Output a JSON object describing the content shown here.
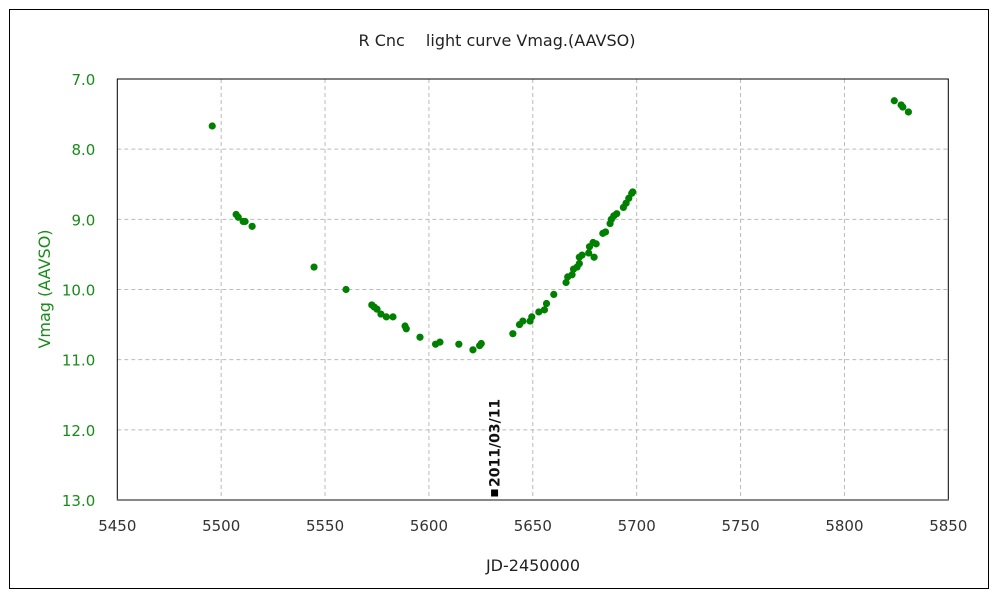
{
  "chart_data": {
    "type": "scatter",
    "title": "R Cnc　 light curve Vmag.(AAVSO)",
    "xlabel": "JD-2450000",
    "ylabel": "Vmag (AAVSO)",
    "xlim": [
      5450,
      5850
    ],
    "ylim": [
      7.0,
      13.0
    ],
    "y_inverted": true,
    "grid": true,
    "x_ticks": [
      "5450",
      "5500",
      "5550",
      "5600",
      "5650",
      "5700",
      "5750",
      "5800",
      "5850"
    ],
    "y_ticks": [
      "7.0",
      "8.0",
      "9.0",
      "10.0",
      "11.0",
      "12.0",
      "13.0"
    ],
    "marker_color": "#008000",
    "y_label_color": "#1a8a1a",
    "annotation": {
      "label": "2011/03/11",
      "x": 5631.6,
      "y": 12.9
    },
    "points": [
      [
        5495.7,
        7.67
      ],
      [
        5507.2,
        8.93
      ],
      [
        5508.2,
        8.97
      ],
      [
        5510.6,
        9.03
      ],
      [
        5511.5,
        9.03
      ],
      [
        5514.9,
        9.1
      ],
      [
        5544.7,
        9.68
      ],
      [
        5560.1,
        10.0
      ],
      [
        5572.5,
        10.22
      ],
      [
        5573.7,
        10.25
      ],
      [
        5575.0,
        10.28
      ],
      [
        5576.9,
        10.35
      ],
      [
        5579.5,
        10.39
      ],
      [
        5582.7,
        10.39
      ],
      [
        5588.5,
        10.52
      ],
      [
        5589.1,
        10.56
      ],
      [
        5595.7,
        10.68
      ],
      [
        5603.2,
        10.78
      ],
      [
        5605.3,
        10.75
      ],
      [
        5614.4,
        10.78
      ],
      [
        5621.2,
        10.86
      ],
      [
        5624.4,
        10.8
      ],
      [
        5625.2,
        10.77
      ],
      [
        5640.4,
        10.63
      ],
      [
        5643.6,
        10.5
      ],
      [
        5645.2,
        10.45
      ],
      [
        5648.7,
        10.45
      ],
      [
        5649.5,
        10.39
      ],
      [
        5652.9,
        10.32
      ],
      [
        5655.6,
        10.29
      ],
      [
        5656.6,
        10.2
      ],
      [
        5660.1,
        10.07
      ],
      [
        5666.0,
        9.9
      ],
      [
        5666.8,
        9.82
      ],
      [
        5668.9,
        9.79
      ],
      [
        5669.6,
        9.71
      ],
      [
        5671.3,
        9.68
      ],
      [
        5672.4,
        9.63
      ],
      [
        5672.4,
        9.54
      ],
      [
        5673.7,
        9.51
      ],
      [
        5676.9,
        9.48
      ],
      [
        5679.5,
        9.54
      ],
      [
        5677.3,
        9.39
      ],
      [
        5679.0,
        9.33
      ],
      [
        5680.5,
        9.35
      ],
      [
        5683.7,
        9.2
      ],
      [
        5685.0,
        9.18
      ],
      [
        5687.2,
        9.06
      ],
      [
        5687.8,
        9.0
      ],
      [
        5689.0,
        8.95
      ],
      [
        5690.4,
        8.92
      ],
      [
        5693.6,
        8.83
      ],
      [
        5694.9,
        8.77
      ],
      [
        5696.2,
        8.7
      ],
      [
        5697.6,
        8.63
      ],
      [
        5698.1,
        8.61
      ],
      [
        5824.0,
        7.31
      ],
      [
        5827.3,
        7.37
      ],
      [
        5828.1,
        7.4
      ],
      [
        5830.8,
        7.47
      ]
    ]
  }
}
